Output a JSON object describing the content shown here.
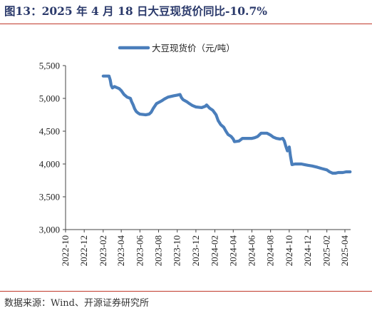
{
  "header": {
    "title": "图13：2025 年 4 月 18 日大豆现货价同比-10.7%"
  },
  "footer": {
    "source": "数据来源：Wind、开源证券研究所"
  },
  "colors": {
    "line": "#4a7ebb",
    "rule": "#c0392b",
    "title": "#2b3a6b",
    "axis": "#444444"
  },
  "chart_data": {
    "type": "line",
    "title": "图13：2025 年 4 月 18 日大豆现货价同比-10.7%",
    "ylim": [
      3000,
      5500
    ],
    "y_ticks": [
      3000,
      3500,
      4000,
      4500,
      5000,
      5500
    ],
    "y_tick_labels": [
      "3,000",
      "3,500",
      "4,000",
      "4,500",
      "5,000",
      "5,500"
    ],
    "x_ticks": [
      "2022-10",
      "2022-12",
      "2023-02",
      "2023-04",
      "2023-06",
      "2023-08",
      "2023-10",
      "2023-12",
      "2024-02",
      "2024-04",
      "2024-06",
      "2024-08",
      "2024-10",
      "2024-12",
      "2025-02",
      "2025-04"
    ],
    "grid": false,
    "legend_position": "top-center",
    "series": [
      {
        "name": "大豆现货价（元/吨）",
        "points": [
          [
            "2023-02-01",
            5340
          ],
          [
            "2023-02-20",
            5340
          ],
          [
            "2023-02-24",
            5280
          ],
          [
            "2023-02-27",
            5200
          ],
          [
            "2023-03-03",
            5160
          ],
          [
            "2023-03-10",
            5180
          ],
          [
            "2023-03-20",
            5160
          ],
          [
            "2023-03-25",
            5150
          ],
          [
            "2023-04-01",
            5120
          ],
          [
            "2023-04-10",
            5060
          ],
          [
            "2023-04-20",
            5020
          ],
          [
            "2023-05-01",
            5000
          ],
          [
            "2023-05-05",
            4950
          ],
          [
            "2023-05-10",
            4900
          ],
          [
            "2023-05-15",
            4840
          ],
          [
            "2023-05-20",
            4800
          ],
          [
            "2023-05-25",
            4780
          ],
          [
            "2023-06-01",
            4760
          ],
          [
            "2023-06-20",
            4750
          ],
          [
            "2023-07-01",
            4760
          ],
          [
            "2023-07-08",
            4790
          ],
          [
            "2023-07-15",
            4850
          ],
          [
            "2023-07-25",
            4920
          ],
          [
            "2023-08-10",
            4960
          ],
          [
            "2023-08-20",
            4990
          ],
          [
            "2023-09-01",
            5020
          ],
          [
            "2023-09-20",
            5040
          ],
          [
            "2023-10-01",
            5050
          ],
          [
            "2023-10-10",
            5060
          ],
          [
            "2023-10-15",
            5010
          ],
          [
            "2023-10-20",
            4980
          ],
          [
            "2023-11-01",
            4950
          ],
          [
            "2023-11-10",
            4920
          ],
          [
            "2023-11-20",
            4890
          ],
          [
            "2023-12-01",
            4870
          ],
          [
            "2023-12-20",
            4860
          ],
          [
            "2024-01-01",
            4880
          ],
          [
            "2024-01-05",
            4900
          ],
          [
            "2024-01-15",
            4850
          ],
          [
            "2024-01-25",
            4820
          ],
          [
            "2024-02-05",
            4750
          ],
          [
            "2024-02-12",
            4660
          ],
          [
            "2024-02-20",
            4600
          ],
          [
            "2024-03-01",
            4560
          ],
          [
            "2024-03-08",
            4500
          ],
          [
            "2024-03-15",
            4450
          ],
          [
            "2024-03-25",
            4420
          ],
          [
            "2024-04-01",
            4380
          ],
          [
            "2024-04-05",
            4340
          ],
          [
            "2024-04-20",
            4350
          ],
          [
            "2024-05-01",
            4390
          ],
          [
            "2024-05-15",
            4390
          ],
          [
            "2024-06-01",
            4390
          ],
          [
            "2024-06-10",
            4400
          ],
          [
            "2024-06-20",
            4420
          ],
          [
            "2024-07-01",
            4470
          ],
          [
            "2024-07-20",
            4470
          ],
          [
            "2024-08-01",
            4440
          ],
          [
            "2024-08-10",
            4410
          ],
          [
            "2024-08-20",
            4390
          ],
          [
            "2024-09-01",
            4380
          ],
          [
            "2024-09-10",
            4390
          ],
          [
            "2024-09-15",
            4350
          ],
          [
            "2024-09-20",
            4270
          ],
          [
            "2024-09-25",
            4200
          ],
          [
            "2024-10-01",
            4260
          ],
          [
            "2024-10-05",
            4120
          ],
          [
            "2024-10-10",
            3990
          ],
          [
            "2024-10-20",
            4000
          ],
          [
            "2024-11-01",
            4000
          ],
          [
            "2024-11-10",
            4000
          ],
          [
            "2024-11-20",
            3990
          ],
          [
            "2024-12-01",
            3980
          ],
          [
            "2024-12-15",
            3970
          ],
          [
            "2025-01-01",
            3950
          ],
          [
            "2025-01-15",
            3930
          ],
          [
            "2025-02-01",
            3910
          ],
          [
            "2025-02-10",
            3880
          ],
          [
            "2025-02-20",
            3860
          ],
          [
            "2025-03-01",
            3860
          ],
          [
            "2025-03-10",
            3870
          ],
          [
            "2025-03-25",
            3870
          ],
          [
            "2025-04-05",
            3880
          ],
          [
            "2025-04-18",
            3880
          ]
        ]
      }
    ]
  }
}
